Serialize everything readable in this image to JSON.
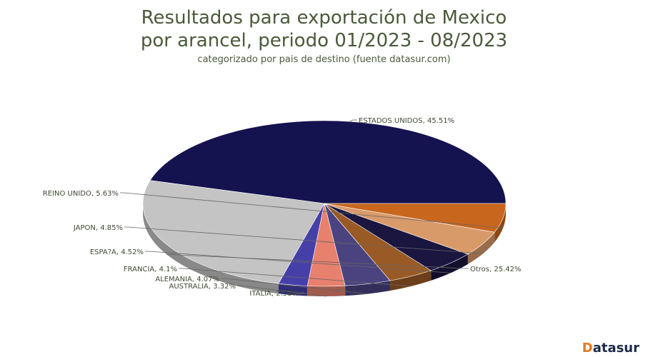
{
  "header": {
    "title_line1": "Resultados para exportación de Mexico",
    "title_line2": "por arancel, periodo 01/2023 - 08/2023",
    "subtitle": "categorizado por pais de destino (fuente datasur.com)"
  },
  "brand": {
    "prefix": "D",
    "rest": "atasur"
  },
  "chart_data": {
    "type": "pie",
    "title": "Resultados para exportación de Mexico por arancel, periodo 01/2023 - 08/2023",
    "subtitle": "categorizado por pais de destino (fuente datasur.com)",
    "slices": [
      {
        "label": "ESTADOS UNIDOS",
        "value": 45.51,
        "display": "ESTADOS UNIDOS, 45.51%",
        "color": "#14124f"
      },
      {
        "label": "Otros",
        "value": 25.42,
        "display": "Otros, 25.42%",
        "color": "#c4c4c4"
      },
      {
        "label": "ITALIA",
        "value": 2.58,
        "display": "ITALIA, 2.58%",
        "color": "#4540a8"
      },
      {
        "label": "AUSTRALIA",
        "value": 3.32,
        "display": "AUSTRALIA, 3.32%",
        "color": "#e8806e"
      },
      {
        "label": "ALEMANIA",
        "value": 4.07,
        "display": "ALEMANIA, 4.07%",
        "color": "#4a4380"
      },
      {
        "label": "FRANCIA",
        "value": 4.1,
        "display": "FRANCIA, 4.1%",
        "color": "#9a5a25"
      },
      {
        "label": "ESPA?A",
        "value": 4.52,
        "display": "ESPA?A, 4.52%",
        "color": "#1a1640"
      },
      {
        "label": "JAPON",
        "value": 4.85,
        "display": "JAPON, 4.85%",
        "color": "#d99a6a"
      },
      {
        "label": "REINO UNIDO",
        "value": 5.63,
        "display": "REINO UNIDO, 5.63%",
        "color": "#c8661e"
      }
    ]
  }
}
